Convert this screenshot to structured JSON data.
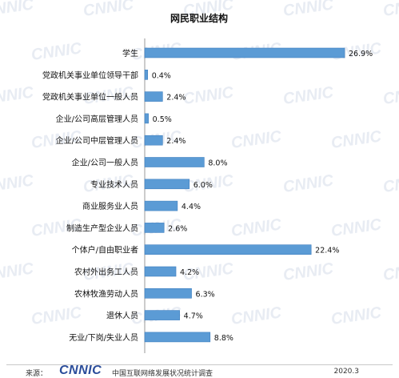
{
  "watermark_text": "CNNIC",
  "footer": {
    "source_label": "来源：",
    "logo": "CNNIC",
    "org": "中国互联网络发展状况统计调查",
    "date": "2020.3"
  },
  "chart_data": {
    "type": "bar",
    "orientation": "horizontal",
    "title": "网民职业结构",
    "categories": [
      "学生",
      "党政机关事业单位领导干部",
      "党政机关事业单位一般人员",
      "企业/公司高层管理人员",
      "企业/公司中层管理人员",
      "企业/公司一般人员",
      "专业技术人员",
      "商业服务业人员",
      "制造生产型企业人员",
      "个体户/自由职业者",
      "农村外出务工人员",
      "农林牧渔劳动人员",
      "退休人员",
      "无业/下岗/失业人员"
    ],
    "values": [
      26.9,
      0.4,
      2.4,
      0.5,
      2.4,
      8.0,
      6.0,
      4.4,
      2.6,
      22.4,
      4.2,
      6.3,
      4.7,
      8.8
    ],
    "value_labels": [
      "26.9%",
      "0.4%",
      "2.4%",
      "0.5%",
      "2.4%",
      "8.0%",
      "6.0%",
      "4.4%",
      "2.6%",
      "22.4%",
      "4.2%",
      "6.3%",
      "4.7%",
      "8.8%"
    ],
    "xlim": [
      0,
      26.9
    ],
    "grid": false,
    "bar_color": "#5b9bd5",
    "bar_border_color": "#3f7fc0"
  }
}
